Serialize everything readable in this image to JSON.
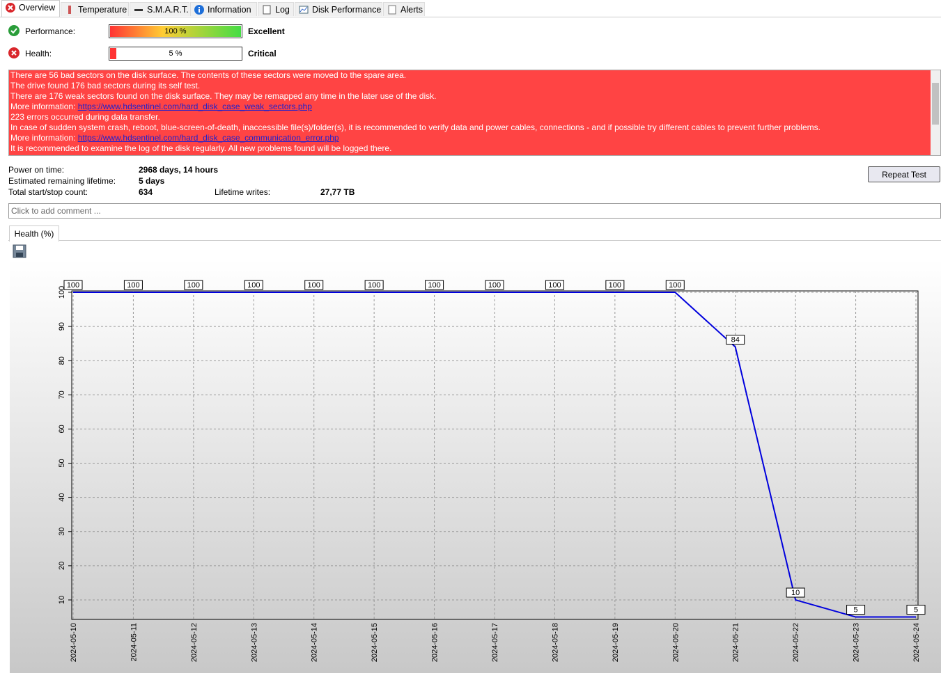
{
  "tabs": [
    "Overview",
    "Temperature",
    "S.M.A.R.T.",
    "Information",
    "Log",
    "Disk Performance",
    "Alerts"
  ],
  "performance": {
    "label": "Performance:",
    "value": 100,
    "value_label": "100 %",
    "status": "Excellent"
  },
  "health": {
    "label": "Health:",
    "value": 5,
    "value_label": "5 %",
    "status": "Critical"
  },
  "messages": [
    {
      "text": "There are 56 bad sectors on the disk surface. The contents of these sectors were moved to the spare area."
    },
    {
      "text": "The drive found 176 bad sectors during its self test."
    },
    {
      "text": "There are 176 weak sectors found on the disk surface. They may be remapped any time in the later use of the disk."
    },
    {
      "text": "More information: ",
      "link": "https://www.hdsentinel.com/hard_disk_case_weak_sectors.php"
    },
    {
      "text": "223 errors occurred during data transfer."
    },
    {
      "text": "In case of sudden system crash, reboot, blue-screen-of-death, inaccessible file(s)/folder(s), it is recommended to verify data and power cables, connections - and if possible try different cables to prevent further problems."
    },
    {
      "text": "More information: ",
      "link": "https://www.hdsentinel.com/hard_disk_case_communication_error.php"
    },
    {
      "text": "It is recommended to examine the log of the disk regularly. All new problems found will be logged there."
    }
  ],
  "stats": {
    "power_on_label": "Power on time:",
    "power_on_value": "2968 days, 14 hours",
    "lifetime_label": "Estimated remaining lifetime:",
    "lifetime_value": "5 days",
    "startstop_label": "Total start/stop count:",
    "startstop_value": "634",
    "writes_label": "Lifetime writes:",
    "writes_value": "27,77 TB"
  },
  "button": "Repeat Test",
  "comment_placeholder": "Click to add comment ...",
  "chart_tab": "Health (%)",
  "chart_data": {
    "type": "line",
    "x": [
      "2024-05-10",
      "2024-05-11",
      "2024-05-12",
      "2024-05-13",
      "2024-05-14",
      "2024-05-15",
      "2024-05-16",
      "2024-05-17",
      "2024-05-18",
      "2024-05-19",
      "2024-05-20",
      "2024-05-21",
      "2024-05-22",
      "2024-05-23",
      "2024-05-24"
    ],
    "values": [
      100,
      100,
      100,
      100,
      100,
      100,
      100,
      100,
      100,
      100,
      100,
      84,
      10,
      5,
      5
    ],
    "color": "#0000dd",
    "ylim": [
      4.3,
      100.4
    ],
    "yticks": [
      10,
      20,
      30,
      40,
      50,
      60,
      70,
      80,
      90,
      100
    ],
    "grid": true
  }
}
